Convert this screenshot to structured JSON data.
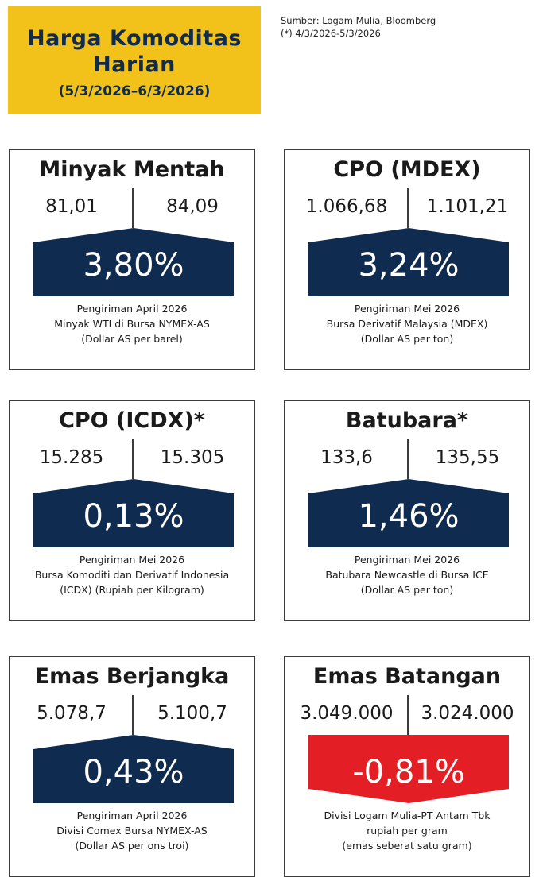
{
  "header": {
    "title_line1": "Harga Komoditas",
    "title_line2": "Harian",
    "date_range": "(5/3/2026–6/3/2026)"
  },
  "source": {
    "line1": "Sumber: Logam Mulia, Bloomberg",
    "line2": "(*) 4/3/2026-5/3/2026"
  },
  "colors": {
    "title_bg": "#f2c21b",
    "title_text": "#0f2b4f",
    "positive": "#0f2b4f",
    "negative": "#e31e24"
  },
  "cards": [
    {
      "title": "Minyak Mentah",
      "prev": "81,01",
      "curr": "84,09",
      "change": "3,80%",
      "direction": "up",
      "desc1": "Pengiriman April 2026",
      "desc2": "Minyak WTI di Bursa NYMEX-AS",
      "desc3": "(Dollar AS per barel)"
    },
    {
      "title": "CPO (MDEX)",
      "prev": "1.066,68",
      "curr": "1.101,21",
      "change": "3,24%",
      "direction": "up",
      "desc1": "Pengiriman Mei 2026",
      "desc2": "Bursa Derivatif Malaysia (MDEX)",
      "desc3": "(Dollar AS per ton)"
    },
    {
      "title": "CPO (ICDX)*",
      "prev": "15.285",
      "curr": "15.305",
      "change": "0,13%",
      "direction": "up",
      "desc1": "Pengiriman Mei 2026",
      "desc2": "Bursa Komoditi dan Derivatif Indonesia",
      "desc3": "(ICDX) (Rupiah per Kilogram)"
    },
    {
      "title": "Batubara*",
      "prev": "133,6",
      "curr": "135,55",
      "change": "1,46%",
      "direction": "up",
      "desc1": "Pengiriman Mei 2026",
      "desc2": "Batubara Newcastle di Bursa ICE",
      "desc3": "(Dollar AS per ton)"
    },
    {
      "title": "Emas Berjangka",
      "prev": "5.078,7",
      "curr": "5.100,7",
      "change": "0,43%",
      "direction": "up",
      "desc1": "Pengiriman April 2026",
      "desc2": "Divisi Comex Bursa NYMEX-AS",
      "desc3": "(Dollar AS per ons troi)"
    },
    {
      "title": "Emas Batangan",
      "prev": "3.049.000",
      "curr": "3.024.000",
      "change": "-0,81%",
      "direction": "down",
      "desc1": "Divisi Logam Mulia-PT Antam Tbk",
      "desc2": "rupiah per gram",
      "desc3": "(emas seberat satu gram)"
    }
  ]
}
